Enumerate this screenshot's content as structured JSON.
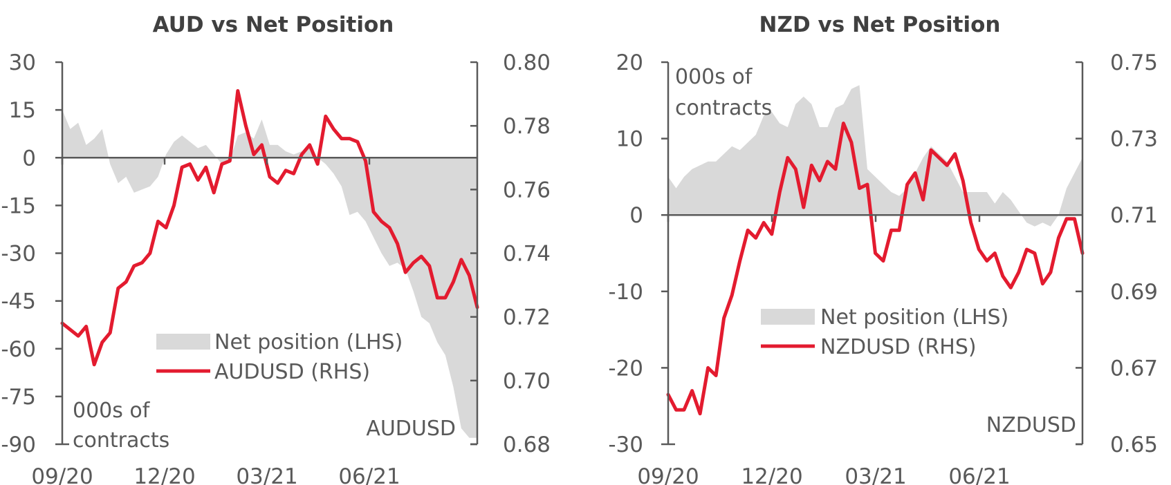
{
  "chart_data": [
    {
      "type": "line",
      "title": "AUD vs Net Position",
      "x_ticks": [
        "09/20",
        "12/20",
        "03/21",
        "06/21"
      ],
      "left_axis": {
        "ylim": [
          -90,
          30
        ],
        "ticks": [
          "30",
          "15",
          "0",
          "-15",
          "-30",
          "-45",
          "-60",
          "-75",
          "-90"
        ]
      },
      "right_axis": {
        "ylim": [
          0.68,
          0.8
        ],
        "ticks": [
          "0.80",
          "0.78",
          "0.76",
          "0.74",
          "0.72",
          "0.70",
          "0.68"
        ]
      },
      "left_note": [
        "000s of",
        "contracts"
      ],
      "right_note": "AUDUSD",
      "legend_placement": "center-bottom",
      "grid": false,
      "colors": {
        "net": "#d9d9d9",
        "price": "#e31b2f",
        "axis": "#595959"
      },
      "series": [
        {
          "name": "Net position (LHS)",
          "kind": "area",
          "axis": "left",
          "x": [
            "2020-09-01",
            "2020-09-08",
            "2020-09-15",
            "2020-09-22",
            "2020-09-29",
            "2020-10-06",
            "2020-10-13",
            "2020-10-20",
            "2020-10-27",
            "2020-11-03",
            "2020-11-10",
            "2020-11-17",
            "2020-11-24",
            "2020-12-01",
            "2020-12-08",
            "2020-12-15",
            "2020-12-22",
            "2020-12-29",
            "2021-01-05",
            "2021-01-12",
            "2021-01-19",
            "2021-01-26",
            "2021-02-02",
            "2021-02-09",
            "2021-02-16",
            "2021-02-23",
            "2021-03-02",
            "2021-03-09",
            "2021-03-16",
            "2021-03-23",
            "2021-03-30",
            "2021-04-06",
            "2021-04-13",
            "2021-04-20",
            "2021-04-27",
            "2021-05-04",
            "2021-05-11",
            "2021-05-18",
            "2021-05-25",
            "2021-06-01",
            "2021-06-08",
            "2021-06-15",
            "2021-06-22",
            "2021-06-29",
            "2021-07-06",
            "2021-07-13",
            "2021-07-20",
            "2021-07-27",
            "2021-08-03",
            "2021-08-10",
            "2021-08-17",
            "2021-08-24",
            "2021-08-31"
          ],
          "values": [
            15,
            9,
            11,
            4,
            6,
            9,
            -2,
            -8,
            -6,
            -11,
            -10,
            -9,
            -6,
            1,
            5,
            7,
            5,
            3,
            4,
            1,
            -2,
            -1,
            7,
            8,
            6,
            12,
            4,
            4,
            2,
            1,
            2,
            3,
            0,
            -2,
            -5,
            -9,
            -18,
            -17,
            -20,
            -25,
            -30,
            -34,
            -33,
            -35,
            -42,
            -50,
            -52,
            -58,
            -62,
            -72,
            -85,
            -88,
            -88
          ]
        },
        {
          "name": "AUDUSD (RHS)",
          "kind": "line",
          "axis": "right",
          "x": [
            "2020-09-01",
            "2020-09-08",
            "2020-09-15",
            "2020-09-22",
            "2020-09-29",
            "2020-10-06",
            "2020-10-13",
            "2020-10-20",
            "2020-10-27",
            "2020-11-03",
            "2020-11-10",
            "2020-11-17",
            "2020-11-24",
            "2020-12-01",
            "2020-12-08",
            "2020-12-15",
            "2020-12-22",
            "2020-12-29",
            "2021-01-05",
            "2021-01-12",
            "2021-01-19",
            "2021-01-26",
            "2021-02-02",
            "2021-02-09",
            "2021-02-16",
            "2021-02-23",
            "2021-03-02",
            "2021-03-09",
            "2021-03-16",
            "2021-03-23",
            "2021-03-30",
            "2021-04-06",
            "2021-04-13",
            "2021-04-20",
            "2021-04-27",
            "2021-05-04",
            "2021-05-11",
            "2021-05-18",
            "2021-05-25",
            "2021-06-01",
            "2021-06-08",
            "2021-06-15",
            "2021-06-22",
            "2021-06-29",
            "2021-07-06",
            "2021-07-13",
            "2021-07-20",
            "2021-07-27",
            "2021-08-03",
            "2021-08-10",
            "2021-08-17",
            "2021-08-24",
            "2021-08-31"
          ],
          "values": [
            0.718,
            0.716,
            0.714,
            0.717,
            0.705,
            0.712,
            0.715,
            0.729,
            0.731,
            0.736,
            0.737,
            0.74,
            0.75,
            0.748,
            0.755,
            0.767,
            0.768,
            0.763,
            0.767,
            0.759,
            0.768,
            0.769,
            0.791,
            0.78,
            0.771,
            0.774,
            0.764,
            0.762,
            0.766,
            0.765,
            0.771,
            0.774,
            0.768,
            0.783,
            0.779,
            0.776,
            0.776,
            0.775,
            0.769,
            0.753,
            0.75,
            0.748,
            0.743,
            0.734,
            0.737,
            0.739,
            0.736,
            0.726,
            0.726,
            0.731,
            0.738,
            0.733,
            0.723
          ]
        }
      ]
    },
    {
      "type": "line",
      "title": "NZD vs Net Position",
      "x_ticks": [
        "09/20",
        "12/20",
        "03/21",
        "06/21"
      ],
      "left_axis": {
        "ylim": [
          -30,
          20
        ],
        "ticks": [
          "20",
          "10",
          "0",
          "-10",
          "-20",
          "-30"
        ]
      },
      "right_axis": {
        "ylim": [
          0.65,
          0.75
        ],
        "ticks": [
          "0.75",
          "0.73",
          "0.71",
          "0.69",
          "0.67",
          "0.65"
        ]
      },
      "left_note": [
        "000s of",
        "contracts"
      ],
      "right_note": "NZDUSD",
      "legend_placement": "center",
      "grid": false,
      "colors": {
        "net": "#d9d9d9",
        "price": "#e31b2f",
        "axis": "#595959"
      },
      "series": [
        {
          "name": "Net position (LHS)",
          "kind": "area",
          "axis": "left",
          "x": [
            "2020-09-01",
            "2020-09-08",
            "2020-09-15",
            "2020-09-22",
            "2020-09-29",
            "2020-10-06",
            "2020-10-13",
            "2020-10-20",
            "2020-10-27",
            "2020-11-03",
            "2020-11-10",
            "2020-11-17",
            "2020-11-24",
            "2020-12-01",
            "2020-12-08",
            "2020-12-15",
            "2020-12-22",
            "2020-12-29",
            "2021-01-05",
            "2021-01-12",
            "2021-01-19",
            "2021-01-26",
            "2021-02-02",
            "2021-02-09",
            "2021-02-16",
            "2021-02-23",
            "2021-03-02",
            "2021-03-09",
            "2021-03-16",
            "2021-03-23",
            "2021-03-30",
            "2021-04-06",
            "2021-04-13",
            "2021-04-20",
            "2021-04-27",
            "2021-05-04",
            "2021-05-11",
            "2021-05-18",
            "2021-05-25",
            "2021-06-01",
            "2021-06-08",
            "2021-06-15",
            "2021-06-22",
            "2021-06-29",
            "2021-07-06",
            "2021-07-13",
            "2021-07-20",
            "2021-07-27",
            "2021-08-03",
            "2021-08-10",
            "2021-08-17",
            "2021-08-24",
            "2021-08-31"
          ],
          "values": [
            5,
            3.5,
            5,
            6,
            6.5,
            7,
            7,
            8,
            9,
            8.5,
            9.5,
            10.5,
            13,
            13.5,
            12,
            11.5,
            14.5,
            15.5,
            14.5,
            11.5,
            11.5,
            14,
            14.5,
            16.5,
            17,
            6,
            5,
            4,
            3,
            2.5,
            3.5,
            5.5,
            7.5,
            9,
            8,
            7,
            5,
            3,
            3,
            3,
            3,
            1.5,
            3,
            2,
            0.5,
            -1,
            -1.5,
            -1,
            -1.5,
            0,
            3.5,
            5.5,
            7.5
          ]
        },
        {
          "name": "NZDUSD (RHS)",
          "kind": "line",
          "axis": "right",
          "x": [
            "2020-09-01",
            "2020-09-08",
            "2020-09-15",
            "2020-09-22",
            "2020-09-29",
            "2020-10-06",
            "2020-10-13",
            "2020-10-20",
            "2020-10-27",
            "2020-11-03",
            "2020-11-10",
            "2020-11-17",
            "2020-11-24",
            "2020-12-01",
            "2020-12-08",
            "2020-12-15",
            "2020-12-22",
            "2020-12-29",
            "2021-01-05",
            "2021-01-12",
            "2021-01-19",
            "2021-01-26",
            "2021-02-02",
            "2021-02-09",
            "2021-02-16",
            "2021-02-23",
            "2021-03-02",
            "2021-03-09",
            "2021-03-16",
            "2021-03-23",
            "2021-03-30",
            "2021-04-06",
            "2021-04-13",
            "2021-04-20",
            "2021-04-27",
            "2021-05-04",
            "2021-05-11",
            "2021-05-18",
            "2021-05-25",
            "2021-06-01",
            "2021-06-08",
            "2021-06-15",
            "2021-06-22",
            "2021-06-29",
            "2021-07-06",
            "2021-07-13",
            "2021-07-20",
            "2021-07-27",
            "2021-08-03",
            "2021-08-10",
            "2021-08-17",
            "2021-08-24",
            "2021-08-31"
          ],
          "values": [
            0.663,
            0.659,
            0.659,
            0.664,
            0.658,
            0.67,
            0.668,
            0.683,
            0.689,
            0.698,
            0.706,
            0.704,
            0.708,
            0.705,
            0.716,
            0.725,
            0.722,
            0.712,
            0.723,
            0.719,
            0.724,
            0.722,
            0.734,
            0.729,
            0.717,
            0.718,
            0.7,
            0.698,
            0.706,
            0.706,
            0.718,
            0.721,
            0.714,
            0.727,
            0.725,
            0.723,
            0.726,
            0.719,
            0.708,
            0.701,
            0.698,
            0.7,
            0.694,
            0.691,
            0.695,
            0.701,
            0.7,
            0.692,
            0.695,
            0.704,
            0.709,
            0.709,
            0.7
          ]
        }
      ]
    }
  ]
}
